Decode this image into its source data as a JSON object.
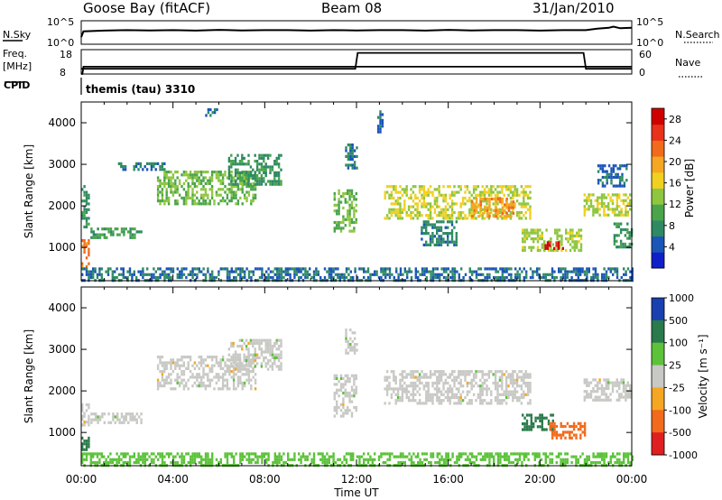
{
  "header": {
    "station": "Goose Bay (fitACF)",
    "beam": "Beam 08",
    "date": "31/Jan/2010"
  },
  "labels": {
    "nsky": "N.Sky",
    "nsearch": "N.Search",
    "freq": "Freq.",
    "mhz": "[MHz]",
    "nave": "Nave",
    "cpid": "CPID",
    "program": "themis (tau) 3310",
    "time_axis": "Time UT"
  },
  "colors": {
    "power_scale": [
      "#1020c8",
      "#1a55b8",
      "#2e8a62",
      "#4aa44a",
      "#8ec63f",
      "#f0d020",
      "#f5a623",
      "#f26a1b",
      "#e8321c",
      "#d00000"
    ],
    "velocity_scale": [
      "#1a3fb0",
      "#2b7a4b",
      "#5cc23a",
      "#c8c8c4",
      "#f5a623",
      "#f26a1b",
      "#e02020"
    ],
    "ground": "#c8c8c4"
  },
  "chart_data": [
    {
      "type": "line",
      "name": "noise",
      "ylabel_left": "N.Sky",
      "ylabel_right": "N.Search",
      "left_ticks": [
        "10^5",
        "10^0"
      ],
      "right_ticks": [
        "10^5",
        "10^0"
      ],
      "xlim": [
        0,
        24
      ],
      "x": [
        0,
        0.1,
        1,
        2,
        3,
        4,
        5,
        6,
        7,
        8,
        9,
        10,
        11,
        12,
        13,
        14,
        15,
        16,
        17,
        18,
        19,
        20,
        21,
        22,
        22.5,
        23,
        23.2,
        23.5,
        24
      ],
      "values": [
        0.3,
        0.55,
        0.58,
        0.6,
        0.59,
        0.6,
        0.58,
        0.61,
        0.59,
        0.6,
        0.6,
        0.58,
        0.6,
        0.59,
        0.6,
        0.6,
        0.58,
        0.61,
        0.59,
        0.6,
        0.6,
        0.58,
        0.6,
        0.6,
        0.66,
        0.7,
        0.75,
        0.68,
        0.7
      ]
    },
    {
      "type": "line",
      "name": "frequency_nave",
      "ylabel_left": "Freq. [MHz]",
      "ylabel_right": "Nave",
      "left_ticks": [
        "18",
        "8"
      ],
      "right_ticks": [
        "60",
        "0"
      ],
      "xlim": [
        0,
        24
      ],
      "series": [
        {
          "name": "Freq.",
          "x": [
            0,
            0.05,
            0.1,
            24
          ],
          "values": [
            8,
            8,
            11,
            11
          ]
        },
        {
          "name": "Nave",
          "x": [
            0,
            11.95,
            12.05,
            21.9,
            22.0,
            24
          ],
          "values": [
            13,
            13,
            52,
            52,
            13,
            13
          ]
        }
      ]
    },
    {
      "type": "heatmap",
      "name": "power",
      "title": "",
      "ylabel": "Slant Range [km]",
      "colorbar_label": "Power [dB]",
      "colorbar_ticks": [
        4,
        8,
        12,
        16,
        20,
        24,
        28
      ],
      "clim": [
        0,
        30
      ],
      "xlim": [
        0,
        24
      ],
      "ylim": [
        200,
        4500
      ],
      "yticks": [
        1000,
        2000,
        3000,
        4000
      ],
      "features": [
        {
          "t0": 0.0,
          "t1": 0.35,
          "r0": 1500,
          "r1": 2500,
          "value": 8
        },
        {
          "t0": 0.0,
          "t1": 0.35,
          "r0": 550,
          "r1": 1200,
          "value": 22
        },
        {
          "t0": 0.4,
          "t1": 2.6,
          "r0": 1220,
          "r1": 1480,
          "value": 10
        },
        {
          "t0": 1.6,
          "t1": 3.6,
          "r0": 2850,
          "r1": 3050,
          "value": 7
        },
        {
          "t0": 3.3,
          "t1": 7.6,
          "r0": 2050,
          "r1": 2850,
          "value": 12
        },
        {
          "t0": 6.4,
          "t1": 8.7,
          "r0": 2500,
          "r1": 3250,
          "value": 8
        },
        {
          "t0": 5.4,
          "t1": 5.9,
          "r0": 4150,
          "r1": 4350,
          "value": 6
        },
        {
          "t0": 11.0,
          "t1": 12.0,
          "r0": 1400,
          "r1": 2400,
          "value": 12
        },
        {
          "t0": 11.5,
          "t1": 12.0,
          "r0": 2900,
          "r1": 3500,
          "value": 6
        },
        {
          "t0": 12.9,
          "t1": 13.1,
          "r0": 3800,
          "r1": 4300,
          "value": 5
        },
        {
          "t0": 13.2,
          "t1": 19.6,
          "r0": 1700,
          "r1": 2500,
          "value": 15
        },
        {
          "t0": 17.0,
          "t1": 18.8,
          "r0": 1750,
          "r1": 2200,
          "value": 20
        },
        {
          "t0": 14.8,
          "t1": 16.4,
          "r0": 1050,
          "r1": 1650,
          "value": 7
        },
        {
          "t0": 19.2,
          "t1": 21.8,
          "r0": 900,
          "r1": 1450,
          "value": 14
        },
        {
          "t0": 20.2,
          "t1": 21.0,
          "r0": 950,
          "r1": 1150,
          "value": 27
        },
        {
          "t0": 21.9,
          "t1": 23.9,
          "r0": 1750,
          "r1": 2300,
          "value": 15
        },
        {
          "t0": 23.2,
          "t1": 24.0,
          "r0": 1000,
          "r1": 1600,
          "value": 8
        },
        {
          "t0": 22.5,
          "t1": 23.8,
          "r0": 2500,
          "r1": 3000,
          "value": 5
        },
        {
          "t0": 0.0,
          "t1": 24.0,
          "r0": 230,
          "r1": 520,
          "value": 6
        }
      ]
    },
    {
      "type": "heatmap",
      "name": "velocity",
      "title": "",
      "ylabel": "Slant Range [km]",
      "colorbar_label": "Velocity [m s⁻¹]",
      "colorbar_ticks": [
        1000,
        500,
        100,
        25,
        -25,
        -100,
        -500,
        -1000
      ],
      "xlim": [
        0,
        24
      ],
      "ylim": [
        200,
        4500
      ],
      "yticks": [
        1000,
        2000,
        3000,
        4000
      ],
      "features": [
        {
          "t0": 0.0,
          "t1": 0.35,
          "r0": 600,
          "r1": 900,
          "value": 150
        },
        {
          "t0": 0.0,
          "t1": 0.35,
          "r0": 1200,
          "r1": 1700,
          "value": 0
        },
        {
          "t0": 0.4,
          "t1": 2.6,
          "r0": 1220,
          "r1": 1480,
          "value": 0
        },
        {
          "t0": 3.3,
          "t1": 7.6,
          "r0": 2050,
          "r1": 2850,
          "value": 0
        },
        {
          "t0": 6.4,
          "t1": 8.7,
          "r0": 2500,
          "r1": 3250,
          "value": 0
        },
        {
          "t0": 11.0,
          "t1": 12.0,
          "r0": 1400,
          "r1": 2400,
          "value": 0
        },
        {
          "t0": 11.5,
          "t1": 12.0,
          "r0": 2900,
          "r1": 3500,
          "value": 0
        },
        {
          "t0": 13.2,
          "t1": 19.6,
          "r0": 1700,
          "r1": 2500,
          "value": 0
        },
        {
          "t0": 19.2,
          "t1": 20.6,
          "r0": 1100,
          "r1": 1450,
          "value": 150
        },
        {
          "t0": 20.4,
          "t1": 22.0,
          "r0": 850,
          "r1": 1250,
          "value": -150
        },
        {
          "t0": 21.9,
          "t1": 23.9,
          "r0": 1750,
          "r1": 2300,
          "value": 0
        },
        {
          "t0": 0.0,
          "t1": 24.0,
          "r0": 230,
          "r1": 520,
          "value": 60
        }
      ]
    }
  ],
  "x_tick_labels": [
    "00:00",
    "04:00",
    "08:00",
    "12:00",
    "16:00",
    "20:00",
    "00:00"
  ]
}
